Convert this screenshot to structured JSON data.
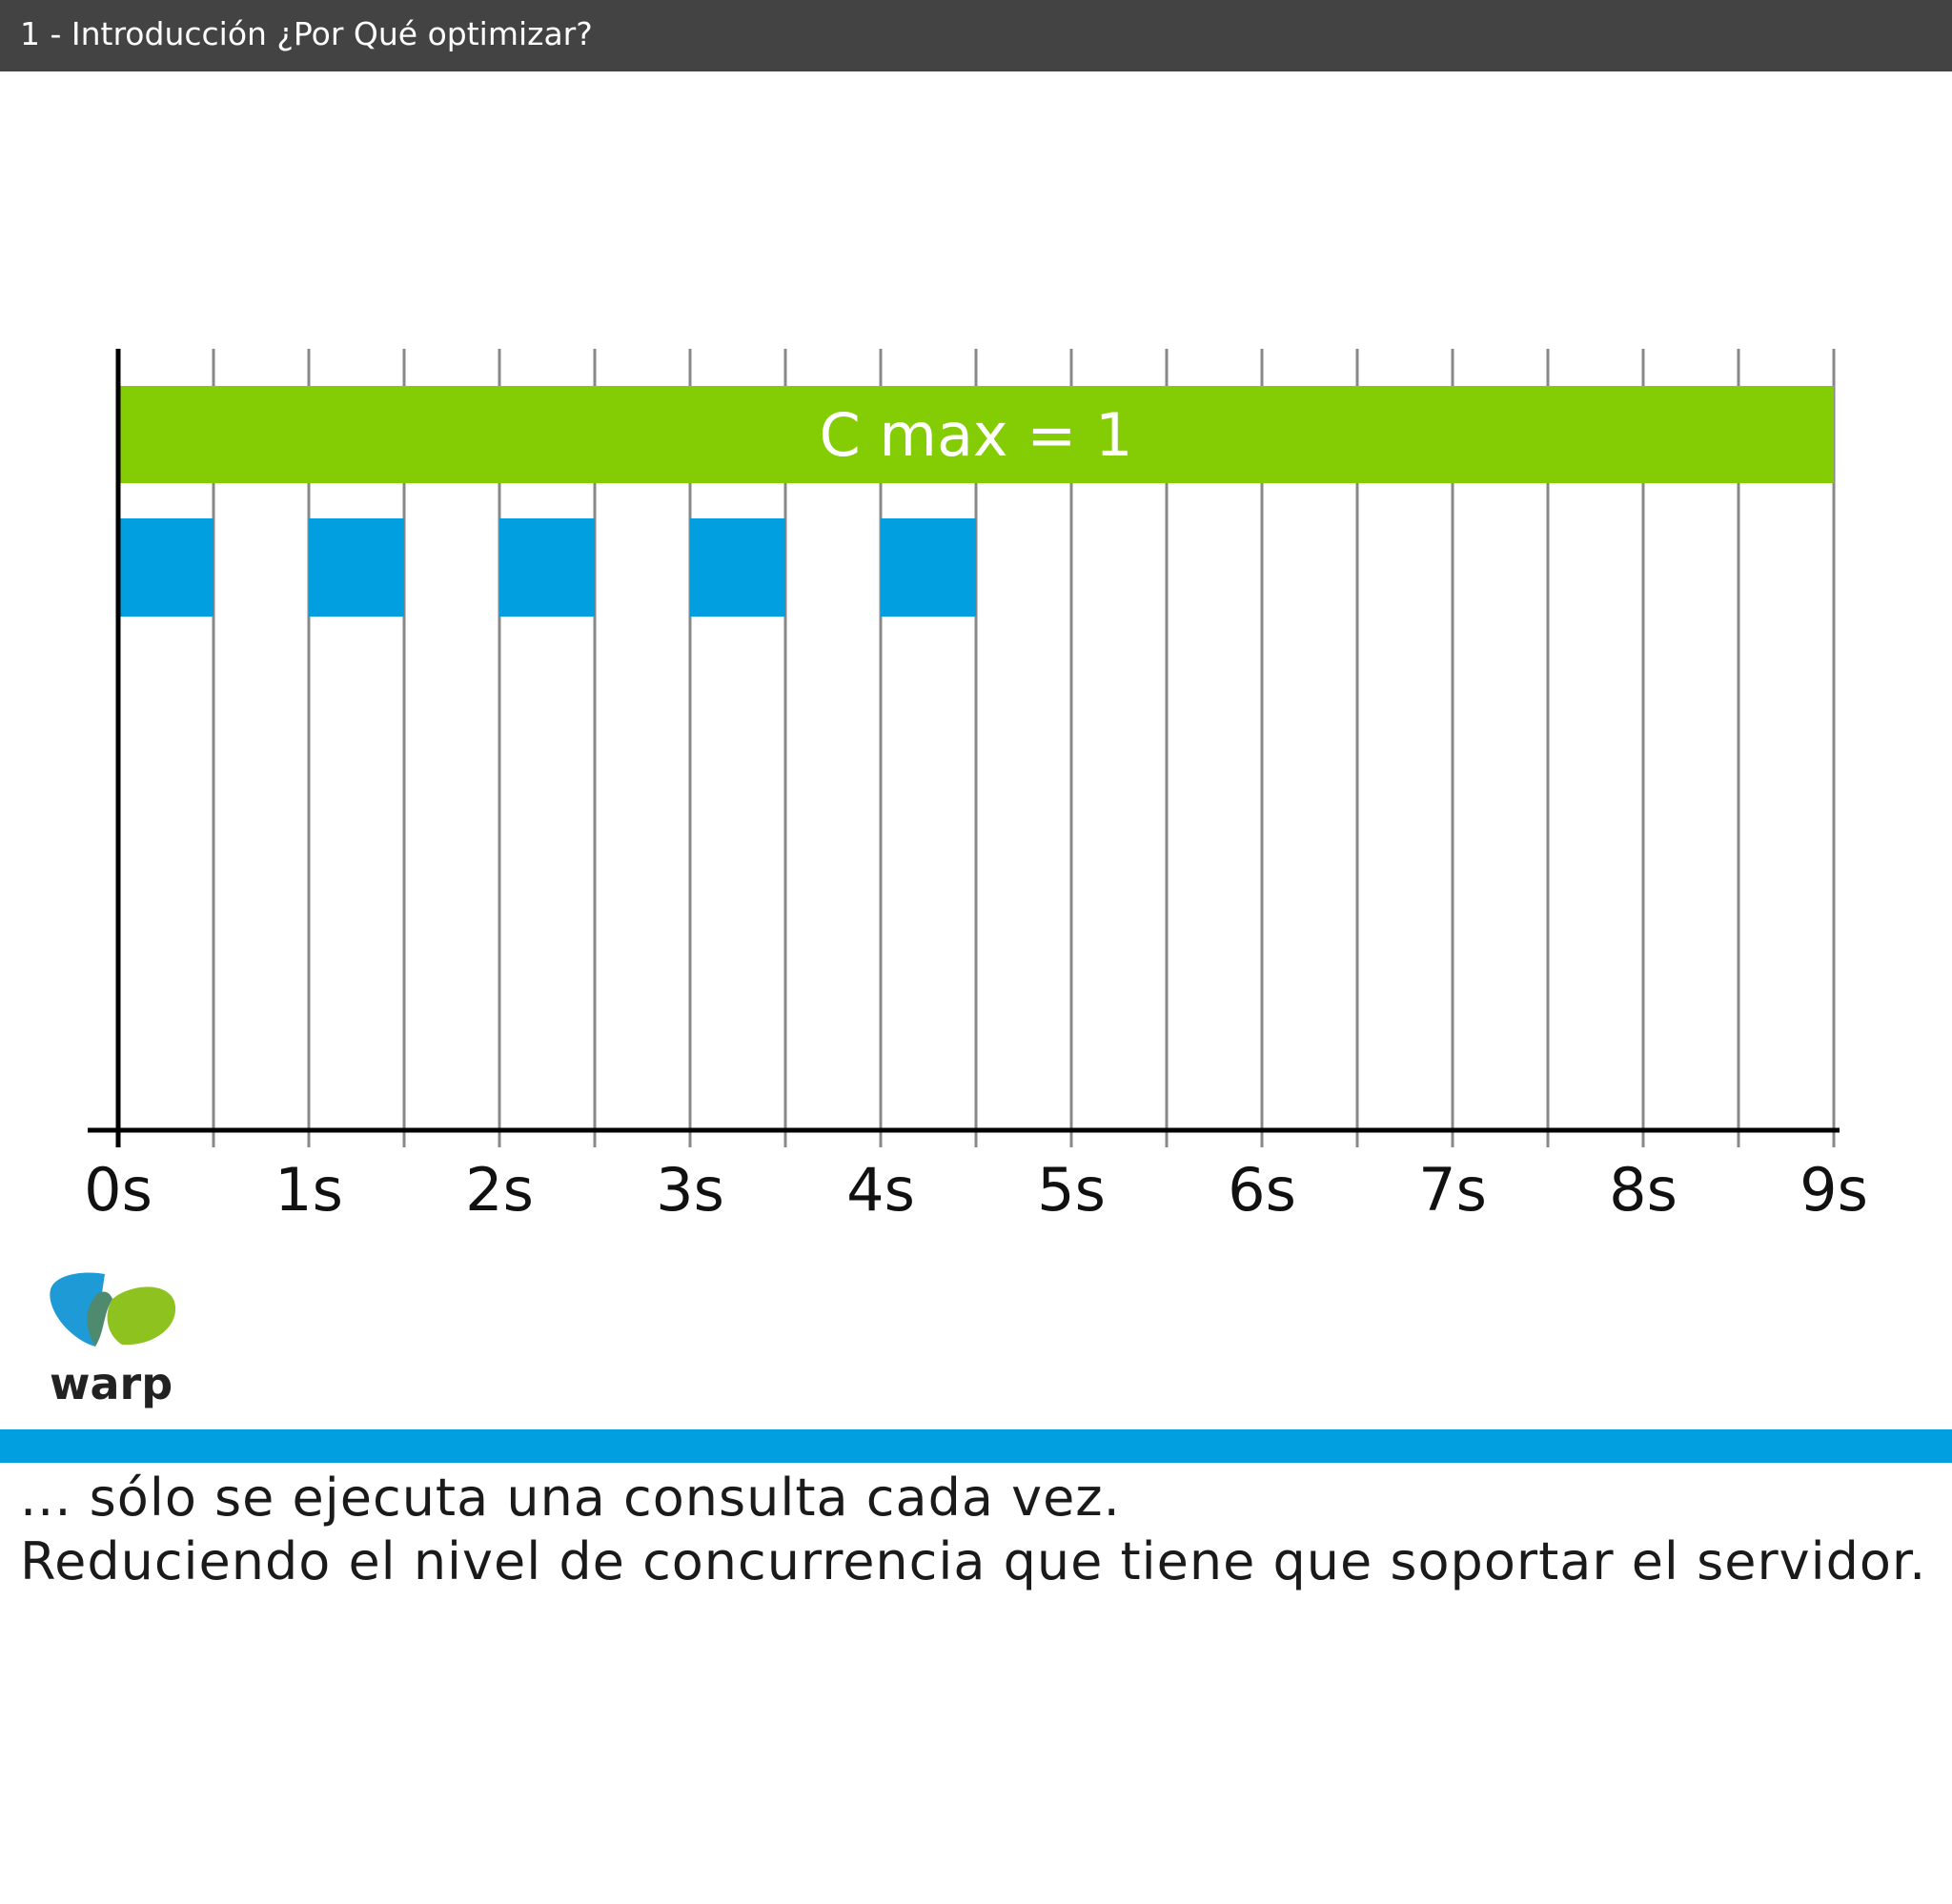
{
  "window": {
    "title": "1 - Introducción ¿Por Qué optimizar?"
  },
  "chart_data": {
    "type": "timeline",
    "x_ticks": [
      "0s",
      "1s",
      "2s",
      "3s",
      "4s",
      "5s",
      "6s",
      "7s",
      "8s",
      "9s"
    ],
    "xlim": [
      0,
      9
    ],
    "grid_step": 0.5,
    "grid": true,
    "limit_bar": {
      "label": "C max = 1",
      "start": 0,
      "end": 9,
      "color": "#84cc03"
    },
    "queries": {
      "color": "#019fe0",
      "intervals": [
        [
          0,
          0.5
        ],
        [
          1,
          1.5
        ],
        [
          2,
          2.5
        ],
        [
          3,
          3.5
        ],
        [
          4,
          4.5
        ]
      ]
    }
  },
  "logo": {
    "text": "warp",
    "colors": {
      "blue": "#1e9ad6",
      "green": "#8dc21f",
      "overlap": "#4f8a6e",
      "text": "#222222"
    }
  },
  "caption": {
    "line1": "... sólo se ejecuta una consulta cada vez.",
    "line2": "Reduciendo el nivel de concurrencia que tiene que soportar el servidor."
  },
  "colors": {
    "title_bar": "#434343",
    "caption_rule": "#019fe0",
    "axis": "#000000",
    "grid": "#888888"
  }
}
